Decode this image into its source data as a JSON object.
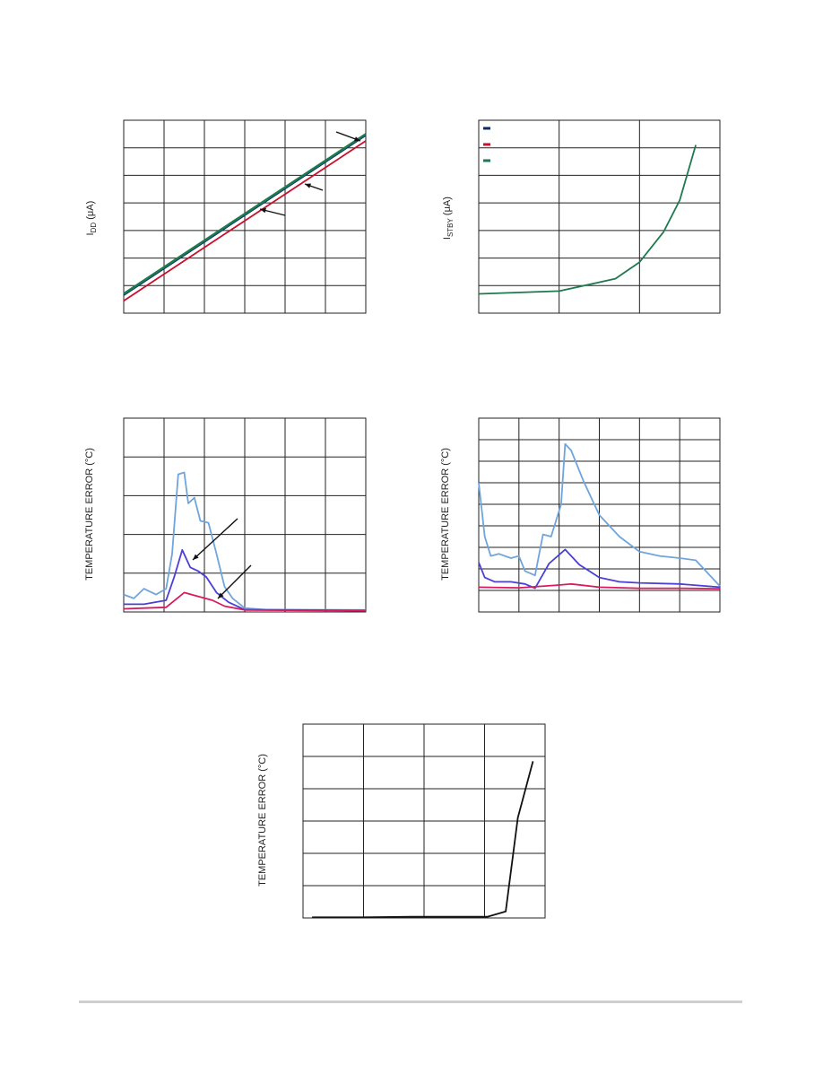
{
  "chart_data": [
    {
      "type": "line",
      "ylabel_main": "I",
      "ylabel_sub": "DD",
      "ylabel_unit": " (μA)",
      "xlim": [
        0,
        6
      ],
      "ylim": [
        0,
        7
      ],
      "series": [
        {
          "color": "#0d2a6b",
          "x": [
            0,
            6
          ],
          "y": [
            0.65,
            6.45
          ]
        },
        {
          "color": "#c8102e",
          "x": [
            0,
            6
          ],
          "y": [
            0.45,
            6.25
          ]
        },
        {
          "color": "#1e7a4e",
          "x": [
            0,
            6
          ],
          "y": [
            0.7,
            6.5
          ]
        }
      ]
    },
    {
      "type": "line",
      "ylabel_main": "I",
      "ylabel_sub": "STBY",
      "ylabel_unit": " (μA)",
      "legend_position": "top-left",
      "legend_colors": [
        "#0d2a6b",
        "#c8102e",
        "#1e7a4e"
      ],
      "xlim": [
        0,
        3
      ],
      "ylim": [
        0,
        7
      ],
      "series": [
        {
          "color": "#1e7a4e",
          "x": [
            0,
            1,
            1.7,
            2,
            2.3,
            2.5,
            2.7
          ],
          "y": [
            0.7,
            0.8,
            1.25,
            1.85,
            2.95,
            4.1,
            6.1
          ]
        }
      ]
    },
    {
      "type": "line",
      "ylabel": "TEMPERATURE ERROR (°C)",
      "xlim": [
        0,
        6
      ],
      "ylim": [
        0,
        5
      ],
      "series": [
        {
          "color": "#6fa5dc",
          "x": [
            0,
            0.25,
            0.5,
            0.8,
            1.05,
            1.2,
            1.35,
            1.5,
            1.6,
            1.75,
            1.9,
            2.1,
            2.3,
            2.5,
            2.7,
            3,
            3.5,
            6
          ],
          "y": [
            0.45,
            0.35,
            0.6,
            0.45,
            0.6,
            1.5,
            3.55,
            3.6,
            2.8,
            2.95,
            2.35,
            2.3,
            1.5,
            0.65,
            0.35,
            0.1,
            0.06,
            0.05
          ]
        },
        {
          "color": "#4b3fd6",
          "x": [
            0,
            0.5,
            1.05,
            1.25,
            1.45,
            1.65,
            1.85,
            2.05,
            2.3,
            2.6,
            3,
            6
          ],
          "y": [
            0.2,
            0.2,
            0.3,
            0.9,
            1.6,
            1.15,
            1.05,
            0.9,
            0.5,
            0.25,
            0.06,
            0.04
          ]
        },
        {
          "color": "#d81b60",
          "x": [
            0,
            0.5,
            1.05,
            1.5,
            1.85,
            2.2,
            2.5,
            3,
            6
          ],
          "y": [
            0.08,
            0.1,
            0.12,
            0.5,
            0.4,
            0.3,
            0.15,
            0.05,
            0.03
          ]
        }
      ]
    },
    {
      "type": "line",
      "ylabel": "TEMPERATURE ERROR (°C)",
      "xlim": [
        0,
        6
      ],
      "ylim": [
        0,
        9
      ],
      "series": [
        {
          "color": "#6fa5dc",
          "x": [
            0,
            0.15,
            0.3,
            0.5,
            0.8,
            1,
            1.15,
            1.4,
            1.6,
            1.8,
            2.05,
            2.15,
            2.3,
            2.6,
            3,
            3.5,
            4,
            4.5,
            5,
            5.4,
            5.75,
            6
          ],
          "y": [
            6,
            3.5,
            2.6,
            2.7,
            2.5,
            2.6,
            1.9,
            1.7,
            3.6,
            3.5,
            5,
            7.8,
            7.5,
            6.1,
            4.5,
            3.5,
            2.8,
            2.6,
            2.5,
            2.4,
            1.7,
            1.2
          ]
        },
        {
          "color": "#4b3fd6",
          "x": [
            0,
            0.15,
            0.4,
            0.8,
            1.15,
            1.4,
            1.75,
            2.15,
            2.5,
            3,
            3.5,
            4,
            5,
            6
          ],
          "y": [
            2.3,
            1.6,
            1.4,
            1.4,
            1.3,
            1.1,
            2.25,
            2.9,
            2.2,
            1.6,
            1.4,
            1.35,
            1.3,
            1.15
          ]
        },
        {
          "color": "#d81b60",
          "x": [
            0,
            1,
            2,
            2.3,
            3,
            4,
            5,
            6
          ],
          "y": [
            1.15,
            1.12,
            1.25,
            1.3,
            1.15,
            1.1,
            1.1,
            1.08
          ]
        }
      ]
    },
    {
      "type": "line",
      "ylabel": "TEMPERATURE ERROR (°C)",
      "xlim": [
        0,
        4
      ],
      "ylim": [
        0,
        6
      ],
      "series": [
        {
          "color": "#111111",
          "x": [
            0.15,
            1,
            1.8,
            2.2,
            2.6,
            3.05,
            3.35,
            3.55,
            3.8
          ],
          "y": [
            0.02,
            0.02,
            0.04,
            0.04,
            0.04,
            0.04,
            0.2,
            3.1,
            4.85
          ]
        }
      ]
    }
  ]
}
